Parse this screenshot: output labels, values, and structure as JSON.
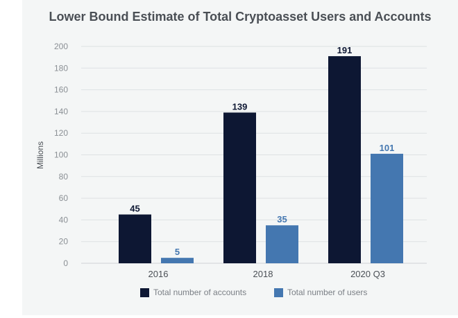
{
  "chart_data": {
    "type": "bar",
    "title": "Lower Bound Estimate of Total Cryptoasset Users and Accounts",
    "xlabel": "",
    "ylabel": "Millions",
    "ylim": [
      0,
      200
    ],
    "yticks": [
      0,
      20,
      40,
      60,
      80,
      100,
      120,
      140,
      160,
      180,
      200
    ],
    "grid": true,
    "legend_position": "bottom",
    "categories": [
      "2016",
      "2018",
      "2020 Q3"
    ],
    "series": [
      {
        "name": "Total number of accounts",
        "values": [
          45,
          139,
          191
        ],
        "color": "#0d1733",
        "label_color": "#0d1733"
      },
      {
        "name": "Total number of users",
        "values": [
          5,
          35,
          101
        ],
        "color": "#4477b0",
        "label_color": "#4477b0"
      }
    ]
  }
}
